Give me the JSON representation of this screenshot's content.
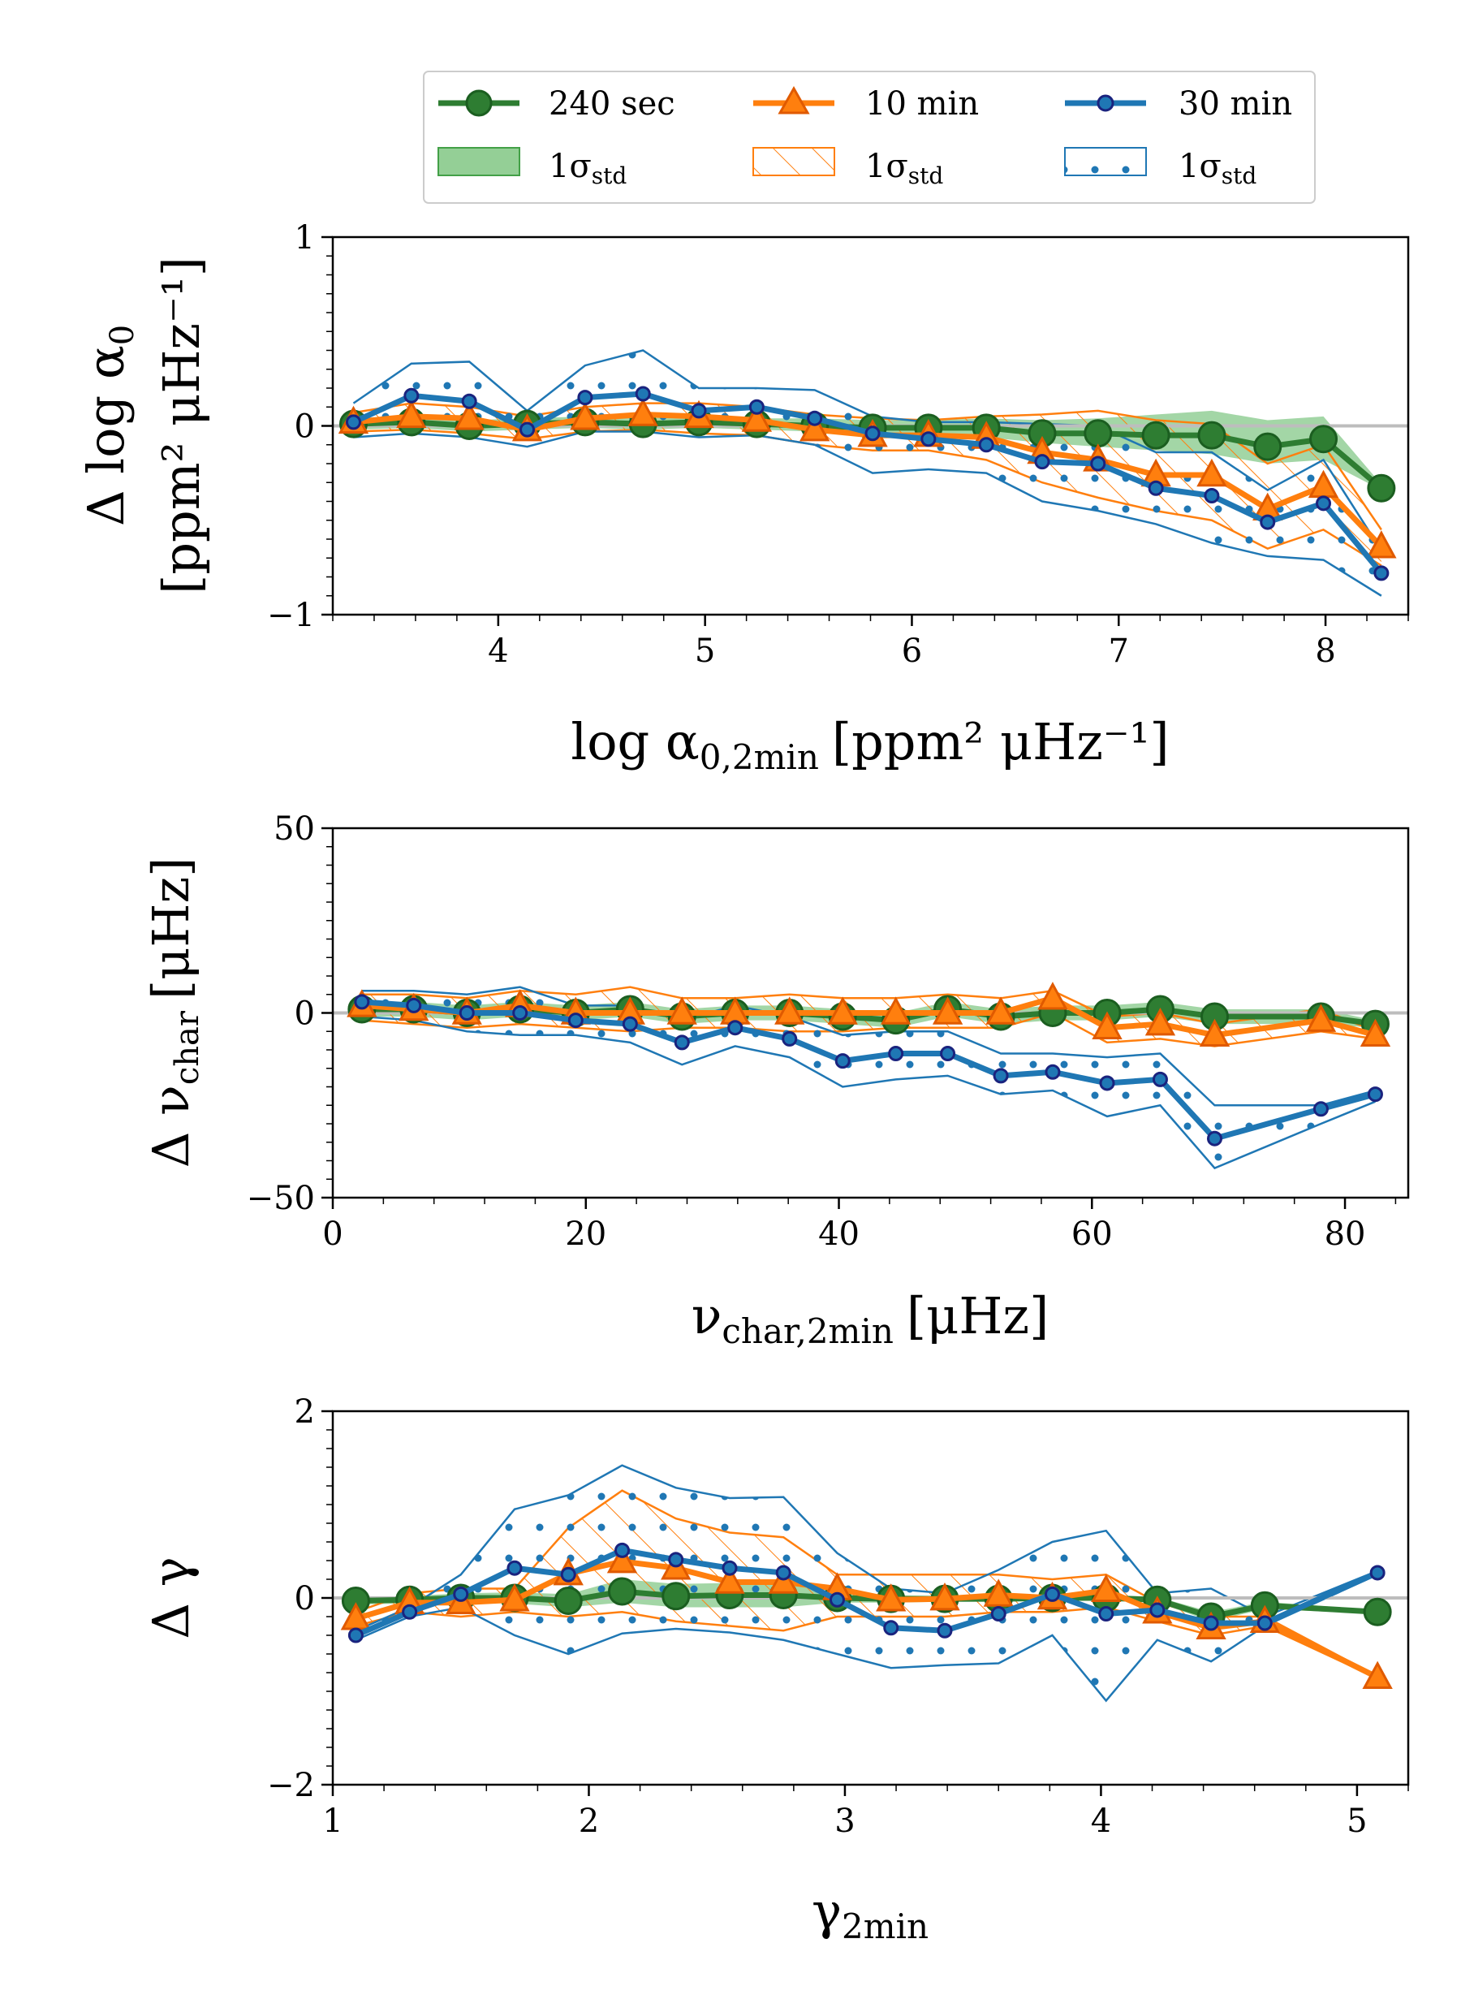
{
  "colors": {
    "green": "#2e7d32",
    "green_fill": "#66bb6a",
    "orange": "#ff7f0e",
    "orange_dark": "#e05a00",
    "blue": "#1f77b4",
    "navy": "#1a237e",
    "ref": "#bdbdbd"
  },
  "legend": {
    "items": [
      {
        "key": "g",
        "label": "240 sec",
        "marker": "circle"
      },
      {
        "key": "o",
        "label": "10 min",
        "marker": "triangle"
      },
      {
        "key": "b",
        "label": "30 min",
        "marker": "dot"
      }
    ],
    "band_prefix": "1σ",
    "band_sub": "std"
  },
  "chart_data": [
    {
      "type": "line",
      "id": "alpha",
      "xlim": [
        3.2,
        8.4
      ],
      "ylim": [
        -1,
        1
      ],
      "xticks": [
        4,
        5,
        6,
        7,
        8
      ],
      "yticks": [
        -1,
        0,
        1
      ],
      "xtick_labels": [
        "4",
        "5",
        "6",
        "7",
        "8"
      ],
      "ytick_labels": [
        "−1",
        "0",
        "1"
      ],
      "ylabel_line1": "Δ log α",
      "ylabel_line1_sub": "0",
      "ylabel_line2": "[ppm² μHz⁻¹]",
      "xlabel_main": "log α",
      "xlabel_sub": "0,2min",
      "xlabel_units": "[ppm² μHz⁻¹]",
      "series": [
        {
          "name": "240 sec",
          "key": "g",
          "x": [
            3.3,
            3.58,
            3.86,
            4.14,
            4.42,
            4.7,
            4.97,
            5.25,
            5.53,
            5.81,
            6.08,
            6.36,
            6.63,
            6.9,
            7.18,
            7.45,
            7.72,
            7.99,
            8.27
          ],
          "y": [
            0.01,
            0.02,
            0.0,
            0.01,
            0.02,
            0.01,
            0.02,
            0.01,
            0.0,
            -0.01,
            -0.01,
            -0.01,
            -0.04,
            -0.04,
            -0.05,
            -0.05,
            -0.11,
            -0.07,
            -0.33
          ],
          "lo": [
            -0.02,
            -0.01,
            -0.03,
            -0.02,
            -0.01,
            -0.02,
            -0.01,
            -0.02,
            -0.03,
            -0.04,
            -0.05,
            -0.06,
            -0.09,
            -0.11,
            -0.13,
            -0.15,
            -0.2,
            -0.18,
            -0.34
          ],
          "hi": [
            0.04,
            0.05,
            0.03,
            0.04,
            0.05,
            0.04,
            0.05,
            0.04,
            0.04,
            0.03,
            0.03,
            0.04,
            0.03,
            0.04,
            0.06,
            0.08,
            0.03,
            0.05,
            -0.31
          ]
        },
        {
          "name": "10 min",
          "key": "o",
          "x": [
            3.3,
            3.58,
            3.86,
            4.14,
            4.42,
            4.7,
            4.97,
            5.25,
            5.53,
            5.81,
            6.08,
            6.36,
            6.63,
            6.9,
            7.18,
            7.45,
            7.72,
            7.99,
            8.27
          ],
          "y": [
            0.02,
            0.05,
            0.04,
            -0.02,
            0.04,
            0.06,
            0.05,
            0.03,
            -0.02,
            -0.05,
            -0.05,
            -0.06,
            -0.14,
            -0.18,
            -0.26,
            -0.26,
            -0.44,
            -0.32,
            -0.64
          ],
          "lo": [
            -0.03,
            -0.02,
            -0.04,
            -0.07,
            -0.03,
            -0.02,
            -0.04,
            -0.05,
            -0.1,
            -0.13,
            -0.13,
            -0.18,
            -0.3,
            -0.38,
            -0.45,
            -0.5,
            -0.65,
            -0.55,
            -0.74
          ],
          "hi": [
            0.07,
            0.12,
            0.1,
            0.05,
            0.1,
            0.12,
            0.12,
            0.1,
            0.06,
            0.04,
            0.03,
            0.05,
            0.06,
            0.08,
            0.03,
            0.01,
            -0.2,
            -0.1,
            -0.55
          ]
        },
        {
          "name": "30 min",
          "key": "b",
          "x": [
            3.3,
            3.58,
            3.86,
            4.14,
            4.42,
            4.7,
            4.97,
            5.25,
            5.53,
            5.81,
            6.08,
            6.36,
            6.63,
            6.9,
            7.18,
            7.45,
            7.72,
            7.99,
            8.27
          ],
          "y": [
            0.02,
            0.16,
            0.13,
            -0.02,
            0.15,
            0.17,
            0.08,
            0.1,
            0.04,
            -0.04,
            -0.07,
            -0.1,
            -0.19,
            -0.2,
            -0.33,
            -0.37,
            -0.51,
            -0.41,
            -0.78
          ],
          "lo": [
            -0.06,
            -0.04,
            -0.06,
            -0.11,
            -0.03,
            -0.03,
            -0.06,
            -0.05,
            -0.1,
            -0.25,
            -0.23,
            -0.25,
            -0.4,
            -0.45,
            -0.52,
            -0.62,
            -0.69,
            -0.71,
            -0.9
          ],
          "hi": [
            0.12,
            0.33,
            0.34,
            0.08,
            0.32,
            0.4,
            0.2,
            0.2,
            0.19,
            0.05,
            0.02,
            0.02,
            0.01,
            0.0,
            -0.14,
            -0.14,
            -0.34,
            -0.18,
            -0.66
          ]
        }
      ]
    },
    {
      "type": "line",
      "id": "nu",
      "xlim": [
        0,
        85
      ],
      "ylim": [
        -50,
        50
      ],
      "xticks": [
        0,
        20,
        40,
        60,
        80
      ],
      "yticks": [
        -50,
        0,
        50
      ],
      "xtick_labels": [
        "0",
        "20",
        "40",
        "60",
        "80"
      ],
      "ytick_labels": [
        "−50",
        "0",
        "50"
      ],
      "ylabel_line1": "Δ ν",
      "ylabel_line1_sub": "char",
      "ylabel_line1_units": "[μHz]",
      "xlabel_main": "ν",
      "xlabel_sub": "char,2min",
      "xlabel_units": "[μHz]",
      "series": [
        {
          "name": "240 sec",
          "key": "g",
          "x": [
            2.3,
            6.4,
            10.6,
            14.8,
            19.2,
            23.5,
            27.6,
            31.8,
            36.1,
            40.3,
            44.5,
            48.6,
            52.8,
            56.9,
            61.2,
            65.4,
            69.7,
            78.1,
            82.4
          ],
          "y": [
            1,
            1,
            0,
            1,
            0,
            1,
            -1,
            0,
            0,
            -1,
            -2,
            1,
            -1,
            0,
            0,
            1,
            -1,
            -1,
            -3
          ],
          "lo": [
            -1,
            -1,
            -2,
            -1,
            -2,
            -1,
            -3,
            -2,
            -2,
            -3,
            -4,
            -1,
            -3,
            -2,
            -2,
            -1,
            -3,
            -3,
            -4
          ],
          "hi": [
            3,
            3,
            2,
            3,
            2,
            3,
            1,
            2,
            2,
            1,
            0,
            3,
            1,
            2,
            2,
            3,
            1,
            1,
            -2
          ]
        },
        {
          "name": "10 min",
          "key": "o",
          "x": [
            2.3,
            6.4,
            10.6,
            14.8,
            19.2,
            23.5,
            27.6,
            31.8,
            36.1,
            40.3,
            44.5,
            48.6,
            52.8,
            56.9,
            61.2,
            65.4,
            69.7,
            78.1,
            82.4
          ],
          "y": [
            2,
            1,
            0,
            2,
            0,
            0,
            0,
            0,
            0,
            0,
            0,
            0,
            0,
            4,
            -4,
            -3,
            -6,
            -2,
            -6
          ],
          "lo": [
            -2,
            -3,
            -4,
            -3,
            -4,
            -5,
            -4,
            -4,
            -5,
            -5,
            -4,
            -4,
            -4,
            0,
            -8,
            -7,
            -9,
            -5,
            -7
          ],
          "hi": [
            5,
            5,
            4,
            6,
            5,
            7,
            4,
            4,
            5,
            4,
            4,
            5,
            4,
            6,
            -1,
            0,
            -3,
            1,
            -5
          ]
        },
        {
          "name": "30 min",
          "key": "b",
          "x": [
            2.3,
            6.4,
            10.6,
            14.8,
            19.2,
            23.5,
            27.6,
            31.8,
            36.1,
            40.3,
            44.5,
            48.6,
            52.8,
            56.9,
            61.2,
            65.4,
            69.7,
            78.1,
            82.4
          ],
          "y": [
            3,
            2,
            0,
            0,
            -2,
            -3,
            -8,
            -4,
            -7,
            -13,
            -11,
            -11,
            -17,
            -16,
            -19,
            -18,
            -34,
            -26,
            -22
          ],
          "lo": [
            -1,
            -2,
            -5,
            -6,
            -6,
            -8,
            -14,
            -9,
            -12,
            -20,
            -18,
            -17,
            -22,
            -21,
            -28,
            -25,
            -42,
            -30,
            -24
          ],
          "hi": [
            6,
            6,
            5,
            7,
            2,
            2,
            -2,
            2,
            -1,
            -6,
            -5,
            -5,
            -11,
            -11,
            -12,
            -11,
            -25,
            -25,
            -21
          ]
        }
      ]
    },
    {
      "type": "line",
      "id": "gamma",
      "xlim": [
        1,
        5.2
      ],
      "ylim": [
        -2,
        2
      ],
      "xticks": [
        1,
        2,
        3,
        4,
        5
      ],
      "yticks": [
        -2,
        0,
        2
      ],
      "xtick_labels": [
        "1",
        "2",
        "3",
        "4",
        "5"
      ],
      "ytick_labels": [
        "−2",
        "0",
        "2"
      ],
      "ylabel_line1": "Δ γ",
      "xlabel_main": "γ",
      "xlabel_sub": "2min",
      "series": [
        {
          "name": "240 sec",
          "key": "g",
          "x": [
            1.09,
            1.3,
            1.5,
            1.71,
            1.92,
            2.13,
            2.34,
            2.55,
            2.76,
            2.97,
            3.18,
            3.39,
            3.6,
            3.81,
            4.02,
            4.22,
            4.43,
            4.64,
            5.08
          ],
          "y": [
            -0.03,
            -0.02,
            0.0,
            0.0,
            -0.03,
            0.07,
            0.02,
            0.03,
            0.03,
            0.0,
            -0.01,
            -0.01,
            -0.01,
            0.0,
            0.0,
            -0.02,
            -0.2,
            -0.08,
            -0.15
          ],
          "lo": [
            -0.07,
            -0.06,
            -0.05,
            -0.06,
            -0.1,
            -0.05,
            -0.1,
            -0.1,
            -0.1,
            -0.05,
            -0.05,
            -0.04,
            -0.04,
            -0.03,
            -0.03,
            -0.05,
            -0.25,
            -0.12,
            -0.17
          ],
          "hi": [
            0.01,
            0.02,
            0.05,
            0.06,
            0.04,
            0.2,
            0.15,
            0.16,
            0.16,
            0.05,
            0.03,
            0.02,
            0.02,
            0.03,
            0.03,
            0.01,
            -0.15,
            -0.04,
            -0.13
          ]
        },
        {
          "name": "10 min",
          "key": "o",
          "x": [
            1.09,
            1.3,
            1.5,
            1.71,
            1.92,
            2.13,
            2.34,
            2.55,
            2.76,
            2.97,
            3.18,
            3.39,
            3.6,
            3.81,
            4.02,
            4.22,
            4.43,
            4.64,
            5.08
          ],
          "y": [
            -0.22,
            -0.05,
            -0.05,
            -0.02,
            0.26,
            0.39,
            0.32,
            0.17,
            0.17,
            0.1,
            -0.02,
            -0.01,
            0.03,
            0.0,
            0.08,
            -0.15,
            -0.32,
            -0.25,
            -0.85
          ],
          "lo": [
            -0.3,
            -0.15,
            -0.2,
            -0.15,
            -0.2,
            -0.15,
            -0.25,
            -0.3,
            -0.35,
            -0.2,
            -0.2,
            -0.2,
            -0.15,
            -0.15,
            -0.1,
            -0.25,
            -0.4,
            -0.3,
            -0.86
          ],
          "hi": [
            -0.15,
            0.05,
            0.1,
            0.1,
            0.75,
            1.15,
            0.85,
            0.7,
            0.65,
            0.25,
            0.25,
            0.25,
            0.25,
            0.2,
            0.25,
            -0.05,
            -0.2,
            -0.2,
            -0.84
          ]
        },
        {
          "name": "30 min",
          "key": "b",
          "x": [
            1.09,
            1.3,
            1.5,
            1.71,
            1.92,
            2.13,
            2.34,
            2.55,
            2.76,
            2.97,
            3.18,
            3.39,
            3.6,
            3.81,
            4.02,
            4.22,
            4.43,
            4.64,
            5.08
          ],
          "y": [
            -0.4,
            -0.15,
            0.04,
            0.32,
            0.25,
            0.51,
            0.41,
            0.32,
            0.27,
            -0.02,
            -0.32,
            -0.35,
            -0.17,
            0.04,
            -0.17,
            -0.13,
            -0.27,
            -0.27,
            0.27
          ],
          "lo": [
            -0.45,
            -0.2,
            -0.1,
            -0.4,
            -0.6,
            -0.38,
            -0.33,
            -0.37,
            -0.45,
            -0.6,
            -0.75,
            -0.72,
            -0.7,
            -0.4,
            -1.1,
            -0.45,
            -0.68,
            -0.3,
            0.25
          ],
          "hi": [
            -0.35,
            -0.1,
            0.25,
            0.95,
            1.1,
            1.42,
            1.18,
            1.07,
            1.08,
            0.48,
            0.1,
            0.05,
            0.3,
            0.6,
            0.72,
            0.05,
            0.1,
            -0.2,
            0.29
          ]
        }
      ]
    }
  ]
}
